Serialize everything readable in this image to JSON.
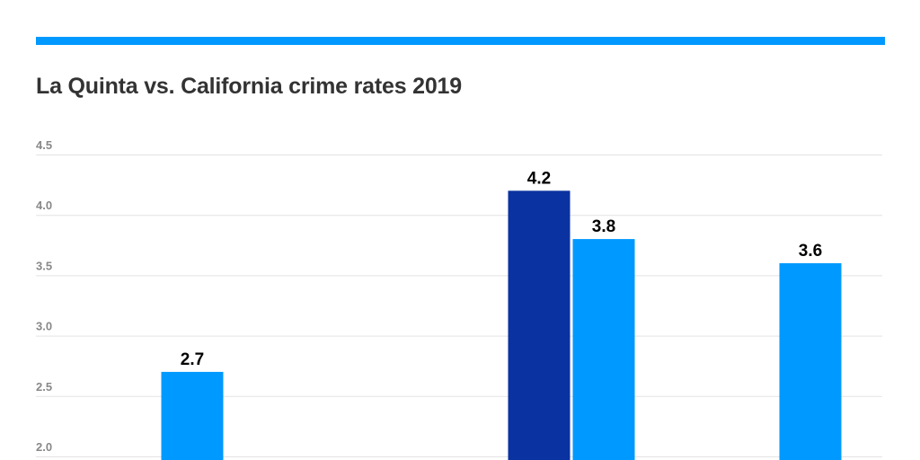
{
  "colors": {
    "accent_bar": "#0099FF",
    "series_dark": "#0A32A0",
    "series_light": "#0099FF",
    "grid": "#E3E3E3",
    "title": "#333333"
  },
  "chart_data": {
    "type": "bar",
    "title": "La Quinta vs. California crime rates 2019",
    "xlabel": "",
    "ylabel": "",
    "ylim": [
      2.0,
      4.5
    ],
    "yticks": [
      "2.0",
      "2.5",
      "3.0",
      "3.5",
      "4.0",
      "4.5"
    ],
    "grid": true,
    "categories": [
      "",
      "",
      "",
      ""
    ],
    "series": [
      {
        "color": "#0A32A0",
        "values": [
          null,
          null,
          4.2,
          null
        ],
        "labels": [
          "",
          "",
          "4.2",
          ""
        ]
      },
      {
        "color": "#0099FF",
        "values": [
          2.7,
          null,
          3.8,
          3.6
        ],
        "labels": [
          "2.7",
          "",
          "3.8",
          "3.6"
        ]
      }
    ]
  }
}
